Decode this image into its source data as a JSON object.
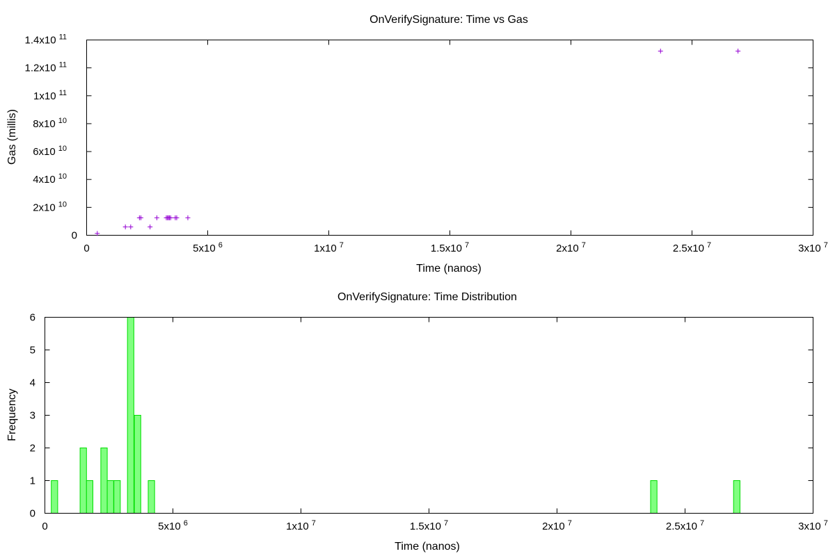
{
  "colors": {
    "scatter_point": "#9400d3",
    "hist_fill": "#80ff80",
    "hist_stroke": "#00dd00"
  },
  "chart_data": [
    {
      "type": "scatter",
      "title": "OnVerifySignature: Time vs Gas",
      "xlabel": "Time (nanos)",
      "ylabel": "Gas (millis)",
      "xlim": [
        0,
        30000000
      ],
      "ylim": [
        0,
        140000000000
      ],
      "grid": false,
      "legend": "none",
      "marker": "plus",
      "x_ticks": [
        {
          "value": 0,
          "base": "0",
          "exp": ""
        },
        {
          "value": 5000000,
          "base": "5x10",
          "exp": "6"
        },
        {
          "value": 10000000,
          "base": "1x10",
          "exp": "7"
        },
        {
          "value": 15000000,
          "base": "1.5x10",
          "exp": "7"
        },
        {
          "value": 20000000,
          "base": "2x10",
          "exp": "7"
        },
        {
          "value": 25000000,
          "base": "2.5x10",
          "exp": "7"
        },
        {
          "value": 30000000,
          "base": "3x10",
          "exp": "7"
        }
      ],
      "y_ticks": [
        {
          "value": 0,
          "base": "0",
          "exp": ""
        },
        {
          "value": 20000000000,
          "base": "2x10",
          "exp": "10"
        },
        {
          "value": 40000000000,
          "base": "4x10",
          "exp": "10"
        },
        {
          "value": 60000000000,
          "base": "6x10",
          "exp": "10"
        },
        {
          "value": 80000000000,
          "base": "8x10",
          "exp": "10"
        },
        {
          "value": 100000000000,
          "base": "1x10",
          "exp": "11"
        },
        {
          "value": 120000000000,
          "base": "1.2x10",
          "exp": "11"
        },
        {
          "value": 140000000000,
          "base": "1.4x10",
          "exp": "11"
        }
      ],
      "points": [
        {
          "x": 440000,
          "y": 1300000000
        },
        {
          "x": 1600000,
          "y": 6000000000
        },
        {
          "x": 1820000,
          "y": 6000000000
        },
        {
          "x": 2180000,
          "y": 12500000000
        },
        {
          "x": 2240000,
          "y": 12500000000
        },
        {
          "x": 2620000,
          "y": 6000000000
        },
        {
          "x": 2900000,
          "y": 12500000000
        },
        {
          "x": 3290000,
          "y": 12500000000
        },
        {
          "x": 3340000,
          "y": 12500000000
        },
        {
          "x": 3380000,
          "y": 12500000000
        },
        {
          "x": 3420000,
          "y": 12500000000
        },
        {
          "x": 3470000,
          "y": 12500000000
        },
        {
          "x": 3660000,
          "y": 12500000000
        },
        {
          "x": 3720000,
          "y": 12500000000
        },
        {
          "x": 4180000,
          "y": 12500000000
        },
        {
          "x": 23700000,
          "y": 132000000000
        },
        {
          "x": 26900000,
          "y": 132000000000
        }
      ]
    },
    {
      "type": "bar",
      "title": "OnVerifySignature: Time Distribution",
      "xlabel": "Time (nanos)",
      "ylabel": "Frequency",
      "xlim": [
        0,
        30000000
      ],
      "ylim": [
        0,
        6
      ],
      "grid": false,
      "legend": "none",
      "bin_width": 250000,
      "x_ticks": [
        {
          "value": 0,
          "base": "0",
          "exp": ""
        },
        {
          "value": 5000000,
          "base": "5x10",
          "exp": "6"
        },
        {
          "value": 10000000,
          "base": "1x10",
          "exp": "7"
        },
        {
          "value": 15000000,
          "base": "1.5x10",
          "exp": "7"
        },
        {
          "value": 20000000,
          "base": "2x10",
          "exp": "7"
        },
        {
          "value": 25000000,
          "base": "2.5x10",
          "exp": "7"
        },
        {
          "value": 30000000,
          "base": "3x10",
          "exp": "7"
        }
      ],
      "y_ticks": [
        {
          "value": 0,
          "label": "0"
        },
        {
          "value": 1,
          "label": "1"
        },
        {
          "value": 2,
          "label": "2"
        },
        {
          "value": 3,
          "label": "3"
        },
        {
          "value": 4,
          "label": "4"
        },
        {
          "value": 5,
          "label": "5"
        },
        {
          "value": 6,
          "label": "6"
        }
      ],
      "bars": [
        {
          "x": 375000,
          "value": 1
        },
        {
          "x": 1500000,
          "value": 2
        },
        {
          "x": 1750000,
          "value": 1
        },
        {
          "x": 2310000,
          "value": 2
        },
        {
          "x": 2560000,
          "value": 1
        },
        {
          "x": 2820000,
          "value": 1
        },
        {
          "x": 3350000,
          "value": 6
        },
        {
          "x": 3620000,
          "value": 3
        },
        {
          "x": 4160000,
          "value": 1
        },
        {
          "x": 23780000,
          "value": 1
        },
        {
          "x": 27020000,
          "value": 1
        }
      ]
    }
  ]
}
